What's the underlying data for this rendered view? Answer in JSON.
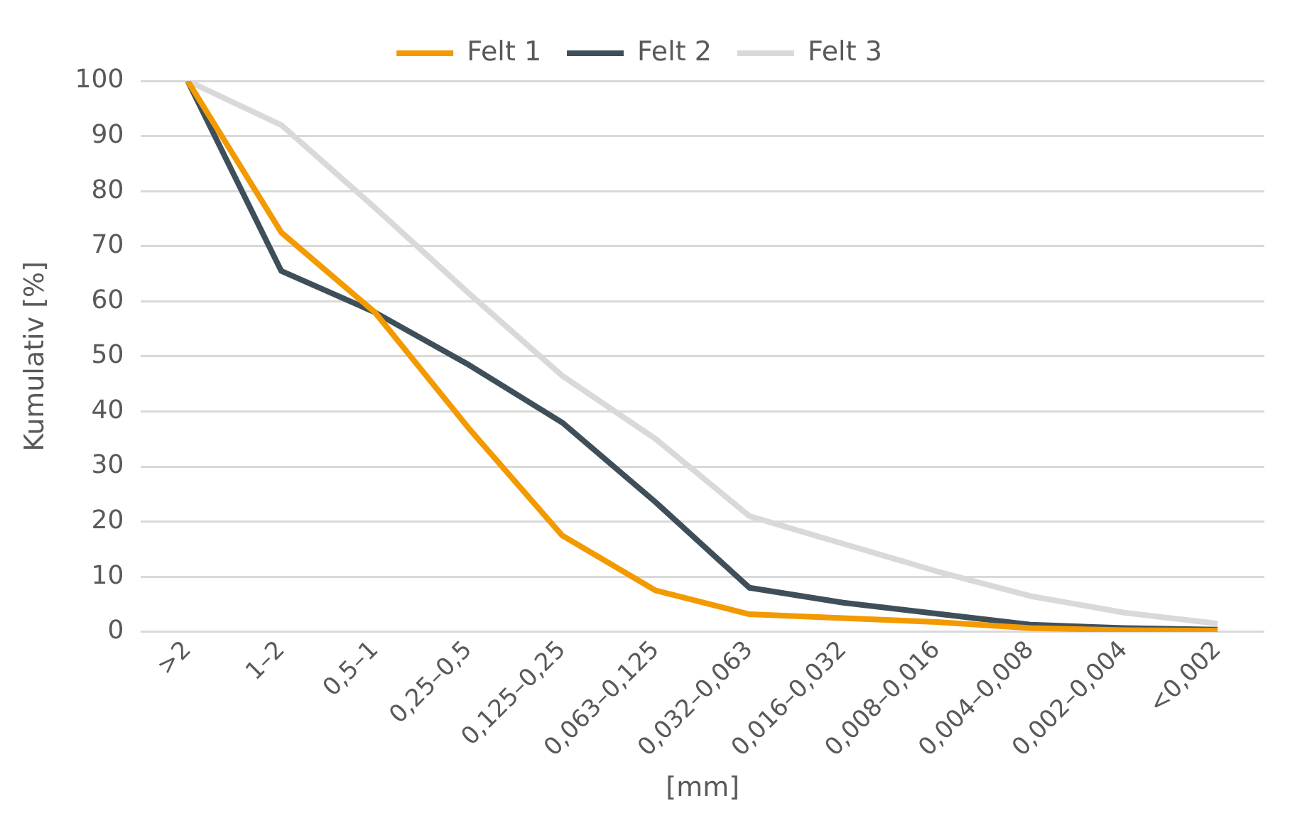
{
  "chart_data": {
    "type": "line",
    "xlabel": "[mm]",
    "ylabel": "Kumulativ [%]",
    "categories": [
      ">2",
      "1–2",
      "0,5–1",
      "0,25–0,5",
      "0,125–0,25",
      "0,063–0,125",
      "0,032–0,063",
      "0,016–0,032",
      "0,008–0,016",
      "0,004–0,008",
      "0,002–0,004",
      "<0,002"
    ],
    "series": [
      {
        "name": "Felt 1",
        "color": "#f29a00",
        "values": [
          100,
          72.5,
          58,
          37,
          17.5,
          7.5,
          3.2,
          2.5,
          1.8,
          0.7,
          0.3,
          0.2
        ]
      },
      {
        "name": "Felt 2",
        "color": "#3f4f5a",
        "values": [
          100,
          65.5,
          58,
          48.5,
          38,
          23.5,
          8,
          5.3,
          3.3,
          1.3,
          0.7,
          0.4
        ]
      },
      {
        "name": "Felt 3",
        "color": "#d9d9d9",
        "values": [
          100,
          92,
          77,
          61.5,
          46.5,
          35,
          21,
          16,
          11,
          6.5,
          3.5,
          1.5
        ]
      }
    ],
    "ylim": [
      0,
      100
    ],
    "yticks": [
      0,
      10,
      20,
      30,
      40,
      50,
      60,
      70,
      80,
      90,
      100
    ],
    "grid": "y",
    "legend": "top",
    "marker": "none",
    "line_style": "solid"
  }
}
